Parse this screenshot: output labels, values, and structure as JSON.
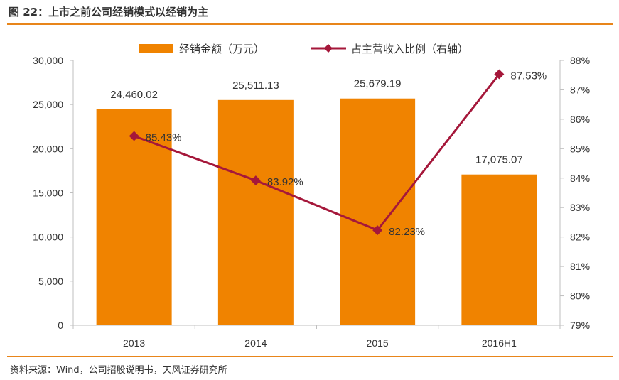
{
  "figure": {
    "title": "图 22：上市之前公司经销模式以经销为主",
    "source": "资料来源：Wind，公司招股说明书，天风证券研究所",
    "accent": "#E8851A"
  },
  "chart_data": {
    "type": "bar+line",
    "categories": [
      "2013",
      "2014",
      "2015",
      "2016H1"
    ],
    "series": [
      {
        "name": "经销金额（万元）",
        "type": "bar",
        "axis": "left",
        "color": "#F08300",
        "values": [
          24460.02,
          25511.13,
          25679.19,
          17075.07
        ],
        "labels": [
          "24,460.02",
          "25,511.13",
          "25,679.19",
          "17,075.07"
        ]
      },
      {
        "name": "占主营收入比例（右轴）",
        "type": "line",
        "axis": "right",
        "color": "#A5173A",
        "values": [
          85.43,
          83.92,
          82.23,
          87.53
        ],
        "labels": [
          "85.43%",
          "83.92%",
          "82.23%",
          "87.53%"
        ]
      }
    ],
    "y_left": {
      "min": 0,
      "max": 30000,
      "ticks": [
        0,
        5000,
        10000,
        15000,
        20000,
        25000,
        30000
      ],
      "tick_labels": [
        "0",
        "5,000",
        "10,000",
        "15,000",
        "20,000",
        "25,000",
        "30,000"
      ]
    },
    "y_right": {
      "min": 79,
      "max": 88,
      "ticks": [
        79,
        80,
        81,
        82,
        83,
        84,
        85,
        86,
        87,
        88
      ],
      "tick_labels": [
        "79%",
        "80%",
        "81%",
        "82%",
        "83%",
        "84%",
        "85%",
        "86%",
        "87%",
        "88%"
      ]
    },
    "legend_position": "top-center",
    "grid": false
  }
}
